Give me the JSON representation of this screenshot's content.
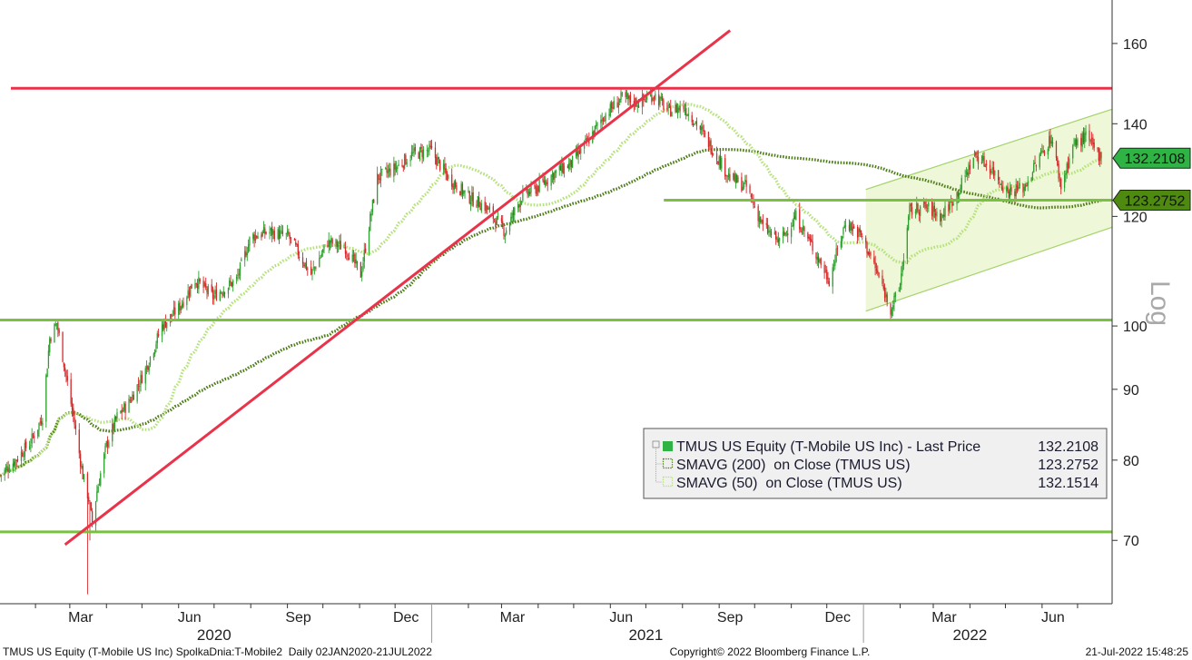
{
  "chart_data": {
    "type": "line",
    "subtype": "candlestick-with-moving-averages",
    "scale": "log",
    "scale_label": "Log",
    "ylim": [
      63,
      172
    ],
    "y_ticks": [
      70,
      80,
      90,
      100,
      120,
      140,
      160
    ],
    "x_range": [
      "2020-01-02",
      "2022-07-21"
    ],
    "x_month_labels": [
      {
        "date": "2020-03-01",
        "label": "Mar"
      },
      {
        "date": "2020-06-01",
        "label": "Jun"
      },
      {
        "date": "2020-09-01",
        "label": "Sep"
      },
      {
        "date": "2020-12-01",
        "label": "Dec"
      },
      {
        "date": "2021-03-01",
        "label": "Mar"
      },
      {
        "date": "2021-06-01",
        "label": "Jun"
      },
      {
        "date": "2021-09-01",
        "label": "Sep"
      },
      {
        "date": "2021-12-01",
        "label": "Dec"
      },
      {
        "date": "2022-03-01",
        "label": "Mar"
      },
      {
        "date": "2022-06-01",
        "label": "Jun"
      }
    ],
    "x_year_labels": [
      {
        "date": "2020-07-01",
        "label": "2020"
      },
      {
        "date": "2021-07-01",
        "label": "2021"
      },
      {
        "date": "2022-04-01",
        "label": "2022"
      }
    ],
    "price_anchors": [
      [
        "2020-01-02",
        78
      ],
      [
        "2020-01-15",
        80
      ],
      [
        "2020-01-28",
        82.5
      ],
      [
        "2020-02-07",
        86
      ],
      [
        "2020-02-13",
        98
      ],
      [
        "2020-02-19",
        100.5
      ],
      [
        "2020-02-26",
        93
      ],
      [
        "2020-03-04",
        86
      ],
      [
        "2020-03-12",
        78
      ],
      [
        "2020-03-17",
        75
      ],
      [
        "2020-03-20",
        72
      ],
      [
        "2020-03-24",
        76
      ],
      [
        "2020-04-01",
        82
      ],
      [
        "2020-04-10",
        86
      ],
      [
        "2020-04-20",
        88
      ],
      [
        "2020-05-04",
        93
      ],
      [
        "2020-05-18",
        100
      ],
      [
        "2020-06-01",
        103
      ],
      [
        "2020-06-15",
        108
      ],
      [
        "2020-06-30",
        105
      ],
      [
        "2020-07-20",
        108
      ],
      [
        "2020-08-01",
        116
      ],
      [
        "2020-08-17",
        117
      ],
      [
        "2020-09-02",
        116
      ],
      [
        "2020-09-21",
        109
      ],
      [
        "2020-10-05",
        115
      ],
      [
        "2020-10-20",
        114
      ],
      [
        "2020-11-02",
        109
      ],
      [
        "2020-11-16",
        128
      ],
      [
        "2020-12-01",
        130
      ],
      [
        "2020-12-15",
        133
      ],
      [
        "2020-12-31",
        134
      ],
      [
        "2021-01-15",
        128
      ],
      [
        "2021-02-01",
        124
      ],
      [
        "2021-02-15",
        122
      ],
      [
        "2021-03-04",
        117
      ],
      [
        "2021-03-18",
        124
      ],
      [
        "2021-04-01",
        126
      ],
      [
        "2021-04-15",
        129
      ],
      [
        "2021-04-29",
        131
      ],
      [
        "2021-05-13",
        136
      ],
      [
        "2021-05-27",
        142
      ],
      [
        "2021-06-10",
        146
      ],
      [
        "2021-06-25",
        145
      ],
      [
        "2021-07-08",
        147
      ],
      [
        "2021-07-20",
        143
      ],
      [
        "2021-08-02",
        144
      ],
      [
        "2021-08-13",
        140
      ],
      [
        "2021-08-27",
        134
      ],
      [
        "2021-09-10",
        128
      ],
      [
        "2021-09-24",
        126
      ],
      [
        "2021-10-08",
        118
      ],
      [
        "2021-10-22",
        115
      ],
      [
        "2021-11-05",
        120
      ],
      [
        "2021-11-19",
        114
      ],
      [
        "2021-12-03",
        108
      ],
      [
        "2021-12-17",
        119
      ],
      [
        "2021-12-31",
        116
      ],
      [
        "2022-01-13",
        109
      ],
      [
        "2022-01-24",
        103
      ],
      [
        "2022-01-31",
        106
      ],
      [
        "2022-02-09",
        121
      ],
      [
        "2022-02-22",
        122
      ],
      [
        "2022-03-08",
        120
      ],
      [
        "2022-03-22",
        125
      ],
      [
        "2022-04-05",
        133
      ],
      [
        "2022-04-19",
        130
      ],
      [
        "2022-05-03",
        125
      ],
      [
        "2022-05-17",
        126
      ],
      [
        "2022-05-31",
        133
      ],
      [
        "2022-06-09",
        137
      ],
      [
        "2022-06-17",
        126
      ],
      [
        "2022-06-27",
        135
      ],
      [
        "2022-07-08",
        137
      ],
      [
        "2022-07-21",
        132.2
      ]
    ],
    "horizontal_levels": [
      {
        "value": 148.5,
        "color": "#e8334a",
        "x_from": "2020-01-02",
        "x_to": "2022-07-21"
      },
      {
        "value": 101,
        "color": "#7ac143",
        "x_from": "2020-01-02",
        "x_to": "2022-07-21"
      },
      {
        "value": 71,
        "color": "#7ac143",
        "x_from": "2020-01-02",
        "x_to": "2022-07-21"
      },
      {
        "value": 123.2752,
        "color": "#7ac143",
        "x_from": "2021-07-07",
        "x_to": "2022-07-21"
      }
    ],
    "trend_line": {
      "color": "#e8334a",
      "from": [
        "2020-02-26",
        69.5
      ],
      "to": [
        "2021-09-01",
        163
      ]
    },
    "channel": {
      "upper": [
        [
          "2022-01-03",
          125.5
        ],
        [
          "2022-07-21",
          143
        ]
      ],
      "lower": [
        [
          "2022-01-03",
          102.5
        ],
        [
          "2022-07-21",
          117.5
        ]
      ],
      "fill": "#eef7d8",
      "stroke": "#a3d36a"
    },
    "series": [
      {
        "name": "TMUS US Equity (T-Mobile US Inc) - Last Price",
        "last_value": "132.2108",
        "marker": "solid-square",
        "up_color": "#2ca02c",
        "down_color": "#d62728",
        "tag_color": "#2fb344"
      },
      {
        "name": "SMAVG (200)  on Close (TMUS US)",
        "last_value": "123.2752",
        "marker": "dotted-square",
        "color": "#4f7d1a",
        "tag_color": "#4f8a10"
      },
      {
        "name": "SMAVG (50)  on Close (TMUS US)",
        "last_value": "132.1514",
        "marker": "dotted-square",
        "color": "#b5e27a"
      }
    ],
    "price_tags": [
      {
        "text": "132.2108",
        "value": 132.2108,
        "color": "#2fb344"
      },
      {
        "text": "123.2752",
        "value": 123.2752,
        "color": "#4f8a10"
      }
    ],
    "legend_position": "bottom-right"
  },
  "footer": {
    "left": "TMUS US Equity (T-Mobile US Inc) SpolkaDnia:T-Mobile2  Daily 02JAN2020-21JUL2022",
    "center": "Copyright© 2022 Bloomberg Finance L.P.",
    "right": "21-Jul-2022 15:48:25"
  }
}
